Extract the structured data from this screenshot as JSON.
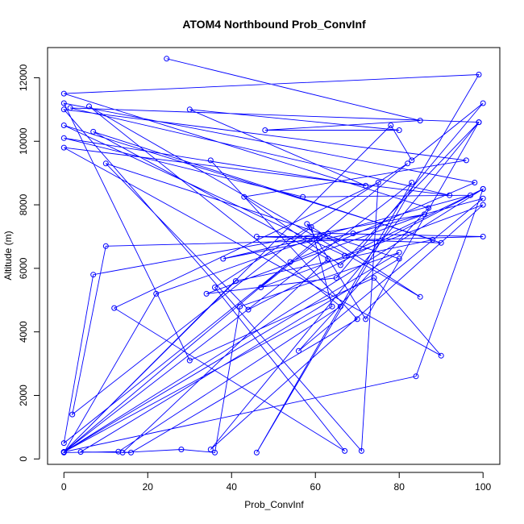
{
  "chart_data": {
    "type": "line",
    "title": "ATOM4 Northbound Prob_ConvInf",
    "xlabel": "Prob_ConvInf",
    "ylabel": "Altitude (m)",
    "xlim": [
      -3.9,
      104
    ],
    "ylim": [
      -170,
      12950
    ],
    "xticks": [
      0,
      20,
      40,
      60,
      80,
      100
    ],
    "yticks": [
      0,
      2000,
      4000,
      6000,
      8000,
      10000,
      12000
    ],
    "grid": false,
    "legend": "none",
    "series_color": "#0000ff",
    "marker": "open-circle",
    "series": [
      {
        "x": [
          24.5,
          85,
          48,
          80,
          30,
          72,
          0,
          57,
          97,
          62,
          38,
          69,
          100,
          56,
          87,
          0,
          99,
          46,
          83,
          0,
          82,
          36,
          67,
          12,
          75,
          71,
          0,
          96,
          43,
          66,
          99,
          35,
          100,
          47,
          63,
          100,
          10,
          2,
          59,
          64,
          0,
          41,
          88,
          0,
          67,
          100,
          84,
          0,
          78,
          83,
          100,
          65,
          34,
          86,
          7,
          0,
          54,
          98,
          0,
          30,
          74,
          90,
          0,
          92,
          1.5,
          99,
          72,
          58,
          85,
          6,
          66,
          13,
          0,
          22,
          61,
          46,
          90,
          7,
          63,
          14,
          28,
          36,
          42,
          80,
          0,
          100,
          44,
          10,
          80,
          4,
          16,
          70,
          35
        ],
        "y": [
          12600,
          10650,
          10350,
          10350,
          11000,
          8600,
          10100,
          8250,
          8300,
          7050,
          6300,
          7100,
          8200,
          3400,
          7900,
          11500,
          12100,
          200,
          8700,
          220,
          9300,
          5400,
          250,
          4750,
          8700,
          250,
          11000,
          9400,
          8250,
          6100,
          10600,
          300,
          8000,
          5400,
          7100,
          7000,
          6700,
          1400,
          7300,
          4800,
          220,
          5600,
          6900,
          10500,
          6400,
          8500,
          2600,
          220,
          10500,
          9400,
          11200,
          5700,
          5200,
          7700,
          5800,
          500,
          6200,
          8700,
          11200,
          3100,
          5700,
          3250,
          9800,
          8300,
          11050,
          10600,
          4400,
          7400,
          5100,
          11100,
          4800,
          230,
          200,
          5200,
          7000,
          7000,
          6800,
          10300,
          6300,
          200,
          300,
          200,
          4800,
          6500,
          220,
          8500,
          4700,
          9300,
          6300,
          220,
          200,
          4400,
          9400
        ]
      }
    ]
  }
}
